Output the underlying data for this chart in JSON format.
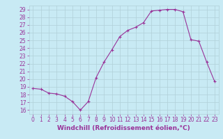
{
  "x": [
    0,
    1,
    2,
    3,
    4,
    5,
    6,
    7,
    8,
    9,
    10,
    11,
    12,
    13,
    14,
    15,
    16,
    17,
    18,
    19,
    20,
    21,
    22,
    23
  ],
  "y": [
    18.8,
    18.7,
    18.2,
    18.1,
    17.8,
    17.1,
    16.0,
    17.1,
    20.2,
    22.2,
    23.8,
    25.5,
    26.3,
    26.7,
    27.3,
    28.8,
    28.9,
    29.0,
    29.0,
    28.7,
    25.1,
    24.9,
    22.2,
    19.7
  ],
  "line_color": "#993399",
  "marker": "+",
  "marker_size": 3,
  "bg_color": "#c8eaf4",
  "grid_color": "#b0d0d8",
  "xlabel": "Windchill (Refroidissement éolien,°C)",
  "ylabel_ticks": [
    16,
    17,
    18,
    19,
    20,
    21,
    22,
    23,
    24,
    25,
    26,
    27,
    28,
    29
  ],
  "xlim": [
    -0.5,
    23.5
  ],
  "ylim": [
    15.5,
    29.5
  ],
  "tick_color": "#993399",
  "label_color": "#993399",
  "tick_fontsize": 5.5,
  "xlabel_fontsize": 6.5
}
